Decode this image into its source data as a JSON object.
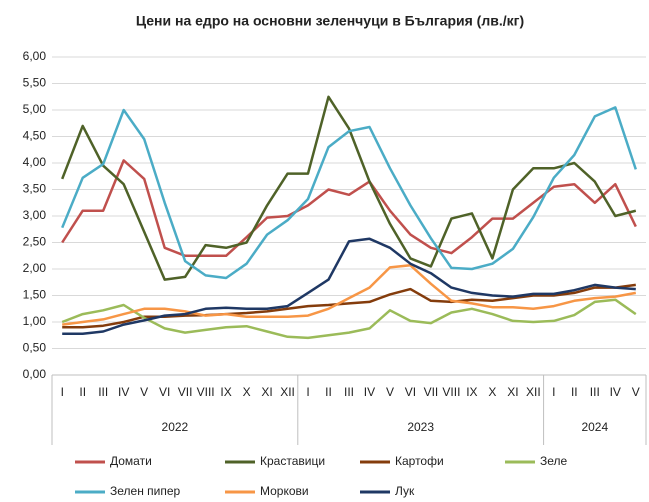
{
  "chart_data": {
    "type": "line",
    "title": "Цени на едро на основни зеленчуци в България (лв./кг)",
    "groups": [
      {
        "label": "2022",
        "categories": [
          "I",
          "II",
          "III",
          "IV",
          "V",
          "VI",
          "VII",
          "VIII",
          "IX",
          "X",
          "XI",
          "XII"
        ]
      },
      {
        "label": "2023",
        "categories": [
          "I",
          "II",
          "III",
          "IV",
          "V",
          "VI",
          "VII",
          "VIII",
          "IX",
          "X",
          "XI",
          "XII"
        ]
      },
      {
        "label": "2024",
        "categories": [
          "I",
          "II",
          "III",
          "IV",
          "V"
        ]
      }
    ],
    "ylim": [
      0,
      6
    ],
    "yticks": [
      {
        "value": 0,
        "label": "0,00"
      },
      {
        "value": 0.5,
        "label": "0,50"
      },
      {
        "value": 1,
        "label": "1,00"
      },
      {
        "value": 1.5,
        "label": "1,50"
      },
      {
        "value": 2,
        "label": "2,00"
      },
      {
        "value": 2.5,
        "label": "2,50"
      },
      {
        "value": 3,
        "label": "3,00"
      },
      {
        "value": 3.5,
        "label": "3,50"
      },
      {
        "value": 4,
        "label": "4,00"
      },
      {
        "value": 4.5,
        "label": "4,50"
      },
      {
        "value": 5,
        "label": "5,00"
      },
      {
        "value": 5.5,
        "label": "5,50"
      },
      {
        "value": 6,
        "label": "6,00"
      }
    ],
    "grid": true,
    "series": [
      {
        "name": "Домати",
        "color": "#c0504d",
        "values": [
          2.5,
          3.1,
          3.1,
          4.05,
          3.7,
          2.4,
          2.25,
          2.25,
          2.25,
          2.6,
          2.97,
          3.0,
          3.2,
          3.5,
          3.4,
          3.65,
          3.1,
          2.65,
          2.4,
          2.3,
          2.6,
          2.95,
          2.95,
          3.25,
          3.55,
          3.6,
          3.25,
          3.6,
          2.8
        ]
      },
      {
        "name": "Краставици",
        "color": "#4f6228",
        "values": [
          3.7,
          4.7,
          3.95,
          3.6,
          2.7,
          1.8,
          1.85,
          2.45,
          2.4,
          2.5,
          3.2,
          3.8,
          3.8,
          5.25,
          4.65,
          3.65,
          2.85,
          2.2,
          2.05,
          2.95,
          3.05,
          2.2,
          3.5,
          3.9,
          3.9,
          4.0,
          3.65,
          3.0,
          3.1
        ]
      },
      {
        "name": "Картофи",
        "color": "#843c0c",
        "values": [
          0.9,
          0.9,
          0.93,
          1.0,
          1.1,
          1.1,
          1.12,
          1.13,
          1.15,
          1.17,
          1.2,
          1.25,
          1.3,
          1.32,
          1.35,
          1.38,
          1.52,
          1.62,
          1.4,
          1.38,
          1.42,
          1.4,
          1.45,
          1.5,
          1.5,
          1.55,
          1.65,
          1.65,
          1.7
        ]
      },
      {
        "name": "Зеле",
        "color": "#9bbb59",
        "values": [
          1.0,
          1.15,
          1.22,
          1.32,
          1.08,
          0.88,
          0.8,
          0.85,
          0.9,
          0.92,
          0.82,
          0.72,
          0.7,
          0.75,
          0.8,
          0.88,
          1.22,
          1.02,
          0.98,
          1.18,
          1.25,
          1.15,
          1.02,
          1.0,
          1.02,
          1.13,
          1.38,
          1.42,
          1.15
        ]
      },
      {
        "name": "Зелен пипер",
        "color": "#4bacc6",
        "values": [
          2.78,
          3.72,
          3.98,
          5.0,
          4.45,
          3.25,
          2.15,
          1.88,
          1.83,
          2.1,
          2.65,
          2.92,
          3.32,
          4.3,
          4.6,
          4.68,
          3.9,
          3.2,
          2.58,
          2.02,
          2.0,
          2.1,
          2.38,
          2.98,
          3.72,
          4.15,
          4.88,
          5.05,
          3.88
        ]
      },
      {
        "name": "Моркови",
        "color": "#f79646",
        "values": [
          0.95,
          1.0,
          1.05,
          1.15,
          1.25,
          1.25,
          1.2,
          1.12,
          1.15,
          1.1,
          1.1,
          1.1,
          1.12,
          1.25,
          1.45,
          1.65,
          2.03,
          2.07,
          1.72,
          1.4,
          1.35,
          1.28,
          1.28,
          1.25,
          1.3,
          1.4,
          1.45,
          1.48,
          1.55
        ]
      },
      {
        "name": "Лук",
        "color": "#1f3864",
        "values": [
          0.78,
          0.78,
          0.82,
          0.95,
          1.03,
          1.12,
          1.15,
          1.25,
          1.27,
          1.25,
          1.25,
          1.3,
          1.55,
          1.8,
          2.52,
          2.57,
          2.4,
          2.1,
          1.92,
          1.65,
          1.55,
          1.5,
          1.48,
          1.53,
          1.53,
          1.6,
          1.7,
          1.65,
          1.62
        ]
      }
    ]
  }
}
